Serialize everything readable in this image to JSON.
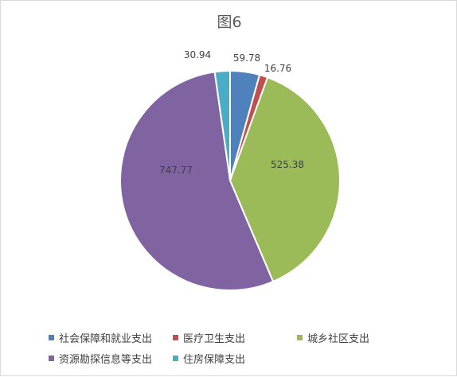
{
  "chart_data": {
    "type": "pie",
    "title": "图6",
    "categories": [
      "社会保障和就业支出",
      "医疗卫生支出",
      "城乡社区支出",
      "资源勘探信息等支出",
      "住房保障支出"
    ],
    "values": [
      59.78,
      16.76,
      525.38,
      747.77,
      30.94
    ],
    "value_labels": [
      "59.78",
      "16.76",
      "525.38",
      "747.77",
      "30.94"
    ],
    "colors": [
      "#4f81bd",
      "#c0504d",
      "#9bbb59",
      "#8064a2",
      "#4bacc6"
    ],
    "legend_position": "bottom"
  }
}
